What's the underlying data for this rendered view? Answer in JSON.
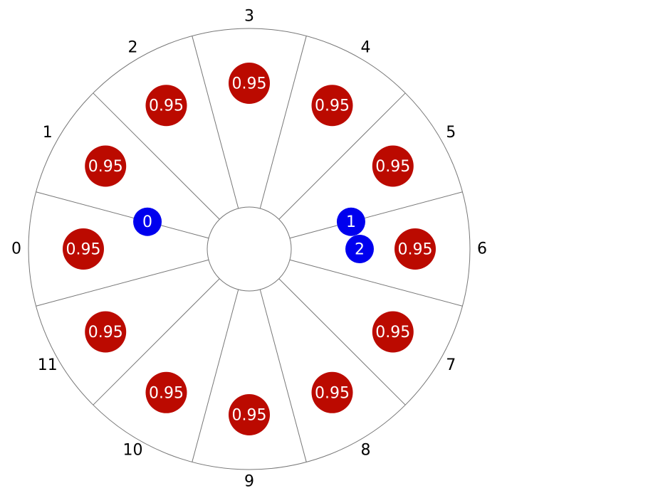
{
  "wheel": {
    "segments": [
      {
        "index": "0",
        "value": "0.95"
      },
      {
        "index": "1",
        "value": "0.95"
      },
      {
        "index": "2",
        "value": "0.95"
      },
      {
        "index": "3",
        "value": "0.95"
      },
      {
        "index": "4",
        "value": "0.95"
      },
      {
        "index": "5",
        "value": "0.95"
      },
      {
        "index": "6",
        "value": "0.95"
      },
      {
        "index": "7",
        "value": "0.95"
      },
      {
        "index": "8",
        "value": "0.95"
      },
      {
        "index": "9",
        "value": "0.95"
      },
      {
        "index": "10",
        "value": "0.95"
      },
      {
        "index": "11",
        "value": "0.95"
      }
    ],
    "markers": [
      {
        "label": "0",
        "segment": 0.5
      },
      {
        "label": "1",
        "segment": 5.5
      },
      {
        "label": "2",
        "segment": 6.0
      }
    ]
  },
  "colors": {
    "value_fill": "#bb0a00",
    "marker_fill": "#0000ee",
    "line": "#777777"
  }
}
